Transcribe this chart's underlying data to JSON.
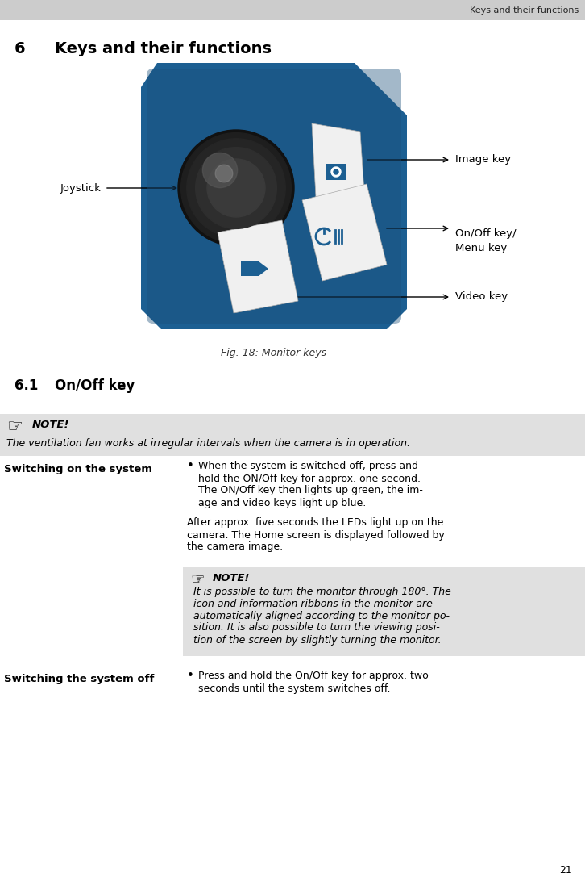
{
  "header_text": "Keys and their functions",
  "header_bg": "#cccccc",
  "page_bg": "#ffffff",
  "section_number": "6",
  "section_title": "Keys and their functions",
  "fig_caption": "Fig. 18: Monitor keys",
  "subsection": "6.1",
  "subsection_title": "On/Off key",
  "note1_title": "NOTE!",
  "note1_text": "The ventilation fan works at irregular intervals when the camera is in operation.",
  "note1_bg": "#e0e0e0",
  "col1_label": "Switching on the system",
  "col2_label": "Switching the system off",
  "note2_title": "NOTE!",
  "note2_bg": "#e0e0e0",
  "page_number": "21",
  "label_joystick": "Joystick",
  "label_image_key": "Image key",
  "label_onoff_key": "On/Off key/\nMenu key",
  "label_video_key": "Video key",
  "device_bg": "#1c5f92",
  "device_bg2": "#1a4f7a",
  "joystick_dark": "#1a1a1a",
  "joystick_mid": "#333333",
  "joystick_light": "#666666",
  "key_white": "#f0f0f0",
  "key_icon_blue": "#1c5f92"
}
